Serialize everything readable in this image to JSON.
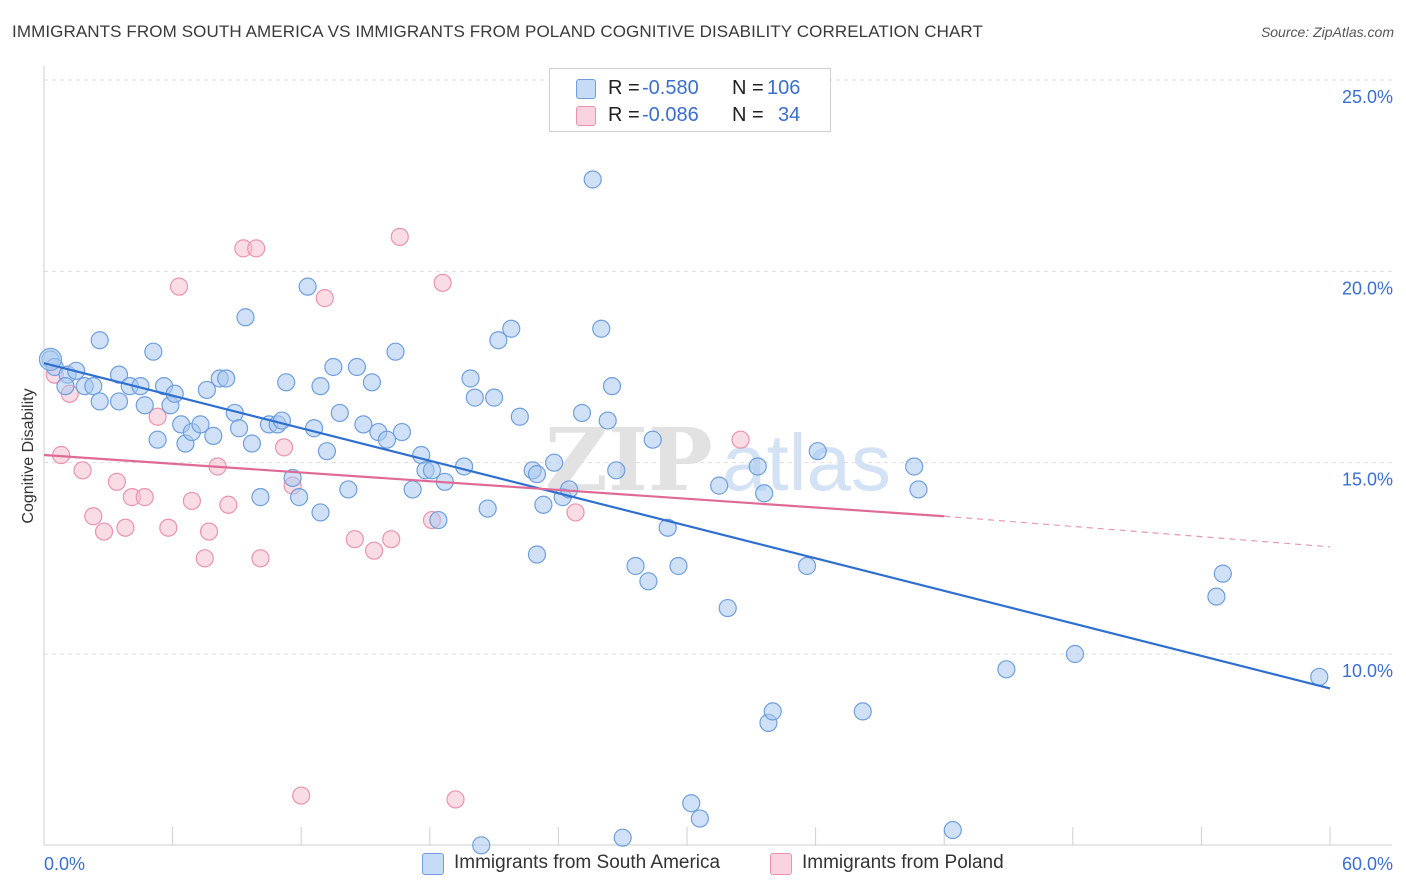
{
  "title": "IMMIGRANTS FROM SOUTH AMERICA VS IMMIGRANTS FROM POLAND COGNITIVE DISABILITY CORRELATION CHART",
  "source": "Source: ZipAtlas.com",
  "colors": {
    "blue_fill": "#a9c8f0",
    "blue_stroke": "#6f9fdc",
    "blue_line": "#2f6fd0",
    "pink_fill": "#f6bfd0",
    "pink_stroke": "#ea93b0",
    "pink_line": "#e06a96",
    "axis_text": "#3a6fd0",
    "grid": "#dddddd",
    "watermark": "#e4e4e4"
  },
  "legend": {
    "rows": [
      {
        "r_label": "R =",
        "r_value": "-0.580",
        "n_label": "N =",
        "n_value": "106"
      },
      {
        "r_label": "R =",
        "r_value": "-0.086",
        "n_label": "N =",
        "n_value": "34"
      }
    ]
  },
  "bottom_legend": {
    "series1": "Immigrants from South America",
    "series2": "Immigrants from Poland"
  },
  "chart_data": {
    "type": "scatter",
    "title": "IMMIGRANTS FROM SOUTH AMERICA VS IMMIGRANTS FROM POLAND COGNITIVE DISABILITY CORRELATION CHART",
    "xlabel": "",
    "ylabel": "Cognitive Disability",
    "xlim": [
      0,
      62.5
    ],
    "ylim": [
      5.0,
      25.5
    ],
    "x_tick_labels": [
      "0.0%",
      "60.0%"
    ],
    "y_tick_values": [
      10,
      15,
      20,
      25
    ],
    "y_tick_labels": [
      "10.0%",
      "15.0%",
      "20.0%",
      "25.0%"
    ],
    "watermark": {
      "zip": "ZIP",
      "atlas": "atlas"
    },
    "series": [
      {
        "name": "Immigrants from South America",
        "color": "#a9c8f0",
        "trendline": {
          "x": [
            0,
            60
          ],
          "y": [
            17.6,
            9.1
          ],
          "dashed_to": 60
        },
        "points": [
          [
            0.3,
            17.7
          ],
          [
            0.5,
            17.5
          ],
          [
            1.1,
            17.3
          ],
          [
            1.5,
            17.4
          ],
          [
            1.0,
            17.0
          ],
          [
            1.9,
            17.0
          ],
          [
            2.3,
            17.0
          ],
          [
            2.6,
            16.6
          ],
          [
            2.6,
            18.2
          ],
          [
            3.5,
            17.3
          ],
          [
            3.5,
            16.6
          ],
          [
            4.0,
            17.0
          ],
          [
            4.5,
            17.0
          ],
          [
            4.7,
            16.5
          ],
          [
            5.1,
            17.9
          ],
          [
            5.3,
            15.6
          ],
          [
            5.6,
            17.0
          ],
          [
            5.9,
            16.5
          ],
          [
            6.1,
            16.8
          ],
          [
            6.4,
            16.0
          ],
          [
            6.6,
            15.5
          ],
          [
            6.9,
            15.8
          ],
          [
            7.3,
            16.0
          ],
          [
            7.6,
            16.9
          ],
          [
            7.9,
            15.7
          ],
          [
            8.2,
            17.2
          ],
          [
            8.5,
            17.2
          ],
          [
            8.9,
            16.3
          ],
          [
            9.1,
            15.9
          ],
          [
            9.4,
            18.8
          ],
          [
            10.1,
            14.1
          ],
          [
            10.5,
            16.0
          ],
          [
            10.9,
            16.0
          ],
          [
            11.1,
            16.1
          ],
          [
            11.3,
            17.1
          ],
          [
            11.6,
            14.6
          ],
          [
            11.9,
            14.1
          ],
          [
            12.3,
            19.6
          ],
          [
            12.6,
            15.9
          ],
          [
            12.9,
            17.0
          ],
          [
            13.2,
            15.3
          ],
          [
            13.5,
            17.5
          ],
          [
            13.8,
            16.3
          ],
          [
            14.2,
            14.3
          ],
          [
            14.6,
            17.5
          ],
          [
            14.9,
            16.0
          ],
          [
            15.3,
            17.1
          ],
          [
            15.6,
            15.8
          ],
          [
            16.0,
            15.6
          ],
          [
            16.4,
            17.9
          ],
          [
            16.7,
            15.8
          ],
          [
            17.2,
            14.3
          ],
          [
            17.6,
            15.2
          ],
          [
            17.8,
            14.8
          ],
          [
            18.1,
            14.8
          ],
          [
            18.4,
            13.5
          ],
          [
            18.7,
            14.5
          ],
          [
            19.6,
            14.9
          ],
          [
            19.9,
            17.2
          ],
          [
            20.1,
            16.7
          ],
          [
            20.7,
            13.8
          ],
          [
            21.0,
            16.7
          ],
          [
            21.2,
            18.2
          ],
          [
            21.8,
            18.5
          ],
          [
            22.2,
            16.2
          ],
          [
            22.8,
            14.8
          ],
          [
            23.0,
            14.7
          ],
          [
            23.3,
            13.9
          ],
          [
            23.8,
            15.0
          ],
          [
            24.2,
            14.1
          ],
          [
            24.5,
            14.3
          ],
          [
            25.1,
            16.3
          ],
          [
            25.6,
            22.4
          ],
          [
            26.0,
            18.5
          ],
          [
            26.3,
            16.1
          ],
          [
            26.5,
            17.0
          ],
          [
            26.7,
            14.8
          ],
          [
            27.0,
            5.2
          ],
          [
            27.6,
            12.3
          ],
          [
            28.2,
            11.9
          ],
          [
            28.4,
            15.6
          ],
          [
            29.1,
            13.3
          ],
          [
            29.6,
            12.3
          ],
          [
            30.6,
            5.7
          ],
          [
            31.5,
            14.4
          ],
          [
            31.9,
            11.2
          ],
          [
            33.3,
            14.9
          ],
          [
            33.8,
            8.2
          ],
          [
            34.0,
            8.5
          ],
          [
            35.6,
            12.3
          ],
          [
            36.1,
            15.3
          ],
          [
            38.2,
            8.5
          ],
          [
            40.6,
            14.9
          ],
          [
            40.8,
            14.3
          ],
          [
            42.4,
            5.4
          ],
          [
            44.9,
            9.6
          ],
          [
            48.1,
            10.0
          ],
          [
            54.7,
            11.5
          ],
          [
            55.0,
            12.1
          ],
          [
            59.5,
            9.4
          ],
          [
            20.4,
            5.0
          ],
          [
            30.2,
            6.1
          ],
          [
            9.7,
            15.5
          ],
          [
            33.6,
            14.2
          ],
          [
            23.0,
            12.6
          ],
          [
            12.9,
            13.7
          ]
        ]
      },
      {
        "name": "Immigrants from Poland",
        "color": "#f6bfd0",
        "trendline": {
          "x": [
            0,
            42
          ],
          "y": [
            15.2,
            13.6
          ],
          "dashed_to": 60,
          "dashed_end_y": 12.8
        },
        "points": [
          [
            0.5,
            17.3
          ],
          [
            0.8,
            15.2
          ],
          [
            1.2,
            16.8
          ],
          [
            1.8,
            14.8
          ],
          [
            2.3,
            13.6
          ],
          [
            2.8,
            13.2
          ],
          [
            3.4,
            14.5
          ],
          [
            3.8,
            13.3
          ],
          [
            4.1,
            14.1
          ],
          [
            4.7,
            14.1
          ],
          [
            5.3,
            16.2
          ],
          [
            5.8,
            13.3
          ],
          [
            6.3,
            19.6
          ],
          [
            6.9,
            14.0
          ],
          [
            7.5,
            12.5
          ],
          [
            7.7,
            13.2
          ],
          [
            8.1,
            14.9
          ],
          [
            8.6,
            13.9
          ],
          [
            9.3,
            20.6
          ],
          [
            9.9,
            20.6
          ],
          [
            10.1,
            12.5
          ],
          [
            11.2,
            15.4
          ],
          [
            11.6,
            14.4
          ],
          [
            12.0,
            6.3
          ],
          [
            13.1,
            19.3
          ],
          [
            14.5,
            13.0
          ],
          [
            15.4,
            12.7
          ],
          [
            16.2,
            13.0
          ],
          [
            16.6,
            20.9
          ],
          [
            18.1,
            13.5
          ],
          [
            18.6,
            19.7
          ],
          [
            19.2,
            6.2
          ],
          [
            24.8,
            13.7
          ],
          [
            32.5,
            15.6
          ]
        ]
      }
    ]
  }
}
